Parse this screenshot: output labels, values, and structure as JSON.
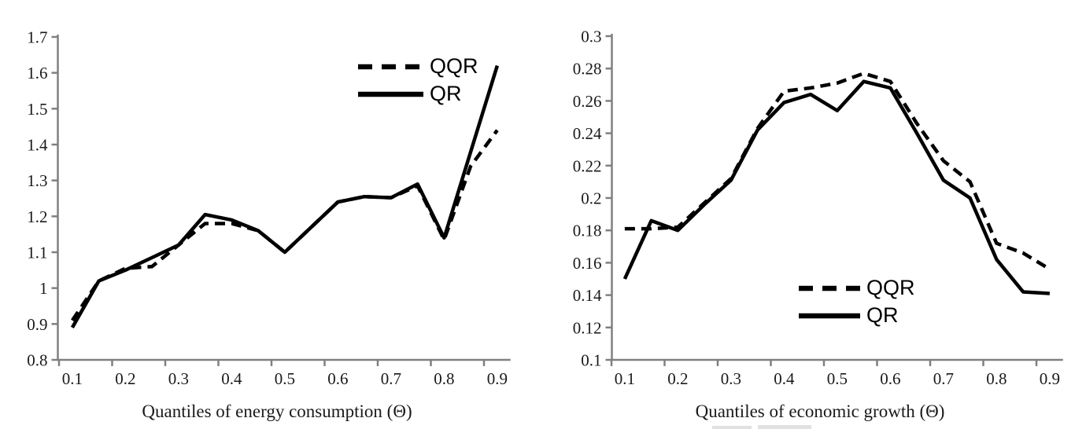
{
  "figure": {
    "background": "#ffffff"
  },
  "colors": {
    "series_line": "#000000",
    "axis_line": "#808080",
    "tick_label": "#1a1a1a",
    "artifact_gray": "#d7d7d7"
  },
  "chart_data": [
    {
      "type": "line",
      "title": "",
      "xlabel": "Quantiles of energy consumption (Θ)",
      "ylabel": "",
      "x": [
        0.1,
        0.15,
        0.2,
        0.25,
        0.3,
        0.35,
        0.4,
        0.45,
        0.5,
        0.55,
        0.6,
        0.65,
        0.7,
        0.75,
        0.8,
        0.85,
        0.9
      ],
      "xtick_labels": [
        "0.1",
        "0.2",
        "0.3",
        "0.4",
        "0.5",
        "0.6",
        "0.7",
        "0.8",
        "0.9"
      ],
      "ylim": [
        0.8,
        1.7
      ],
      "ytick_step": 0.1,
      "ytick_labels": [
        "0.8",
        "0.9",
        "1",
        "1.1",
        "1.2",
        "1.3",
        "1.4",
        "1.5",
        "1.6",
        "1.7"
      ],
      "grid": false,
      "legend_position": "upper-right-inside",
      "series": [
        {
          "name": "QQR",
          "style": "dashed",
          "values": [
            0.91,
            1.02,
            1.055,
            1.06,
            1.12,
            1.18,
            1.18,
            1.16,
            1.1,
            1.17,
            1.24,
            1.255,
            1.252,
            1.285,
            1.135,
            1.34,
            1.44
          ]
        },
        {
          "name": "QR",
          "style": "solid",
          "values": [
            0.89,
            1.02,
            1.05,
            1.085,
            1.12,
            1.205,
            1.19,
            1.16,
            1.1,
            1.17,
            1.24,
            1.255,
            1.252,
            1.29,
            1.14,
            1.38,
            1.62
          ]
        }
      ]
    },
    {
      "type": "line",
      "title": "",
      "xlabel": "Quantiles of economic growth (Θ)",
      "ylabel": "",
      "x": [
        0.1,
        0.15,
        0.2,
        0.25,
        0.3,
        0.35,
        0.4,
        0.45,
        0.5,
        0.55,
        0.6,
        0.65,
        0.7,
        0.75,
        0.8,
        0.85,
        0.9
      ],
      "xtick_labels": [
        "0.1",
        "0.2",
        "0.3",
        "0.4",
        "0.5",
        "0.6",
        "0.7",
        "0.8",
        "0.9"
      ],
      "ylim": [
        0.1,
        0.3
      ],
      "ytick_step": 0.02,
      "ytick_labels": [
        "0.1",
        "0.12",
        "0.14",
        "0.16",
        "0.18",
        "0.2",
        "0.22",
        "0.24",
        "0.26",
        "0.28",
        "0.3"
      ],
      "grid": false,
      "legend_position": "lower-middle-inside",
      "series": [
        {
          "name": "QQR",
          "style": "dashed",
          "values": [
            0.181,
            0.181,
            0.182,
            0.197,
            0.212,
            0.243,
            0.266,
            0.268,
            0.271,
            0.277,
            0.272,
            0.246,
            0.223,
            0.21,
            0.172,
            0.166,
            0.156
          ]
        },
        {
          "name": "QR",
          "style": "solid",
          "values": [
            0.15,
            0.186,
            0.18,
            0.196,
            0.211,
            0.242,
            0.259,
            0.264,
            0.254,
            0.272,
            0.268,
            0.24,
            0.211,
            0.2,
            0.162,
            0.142,
            0.141
          ]
        }
      ]
    }
  ]
}
